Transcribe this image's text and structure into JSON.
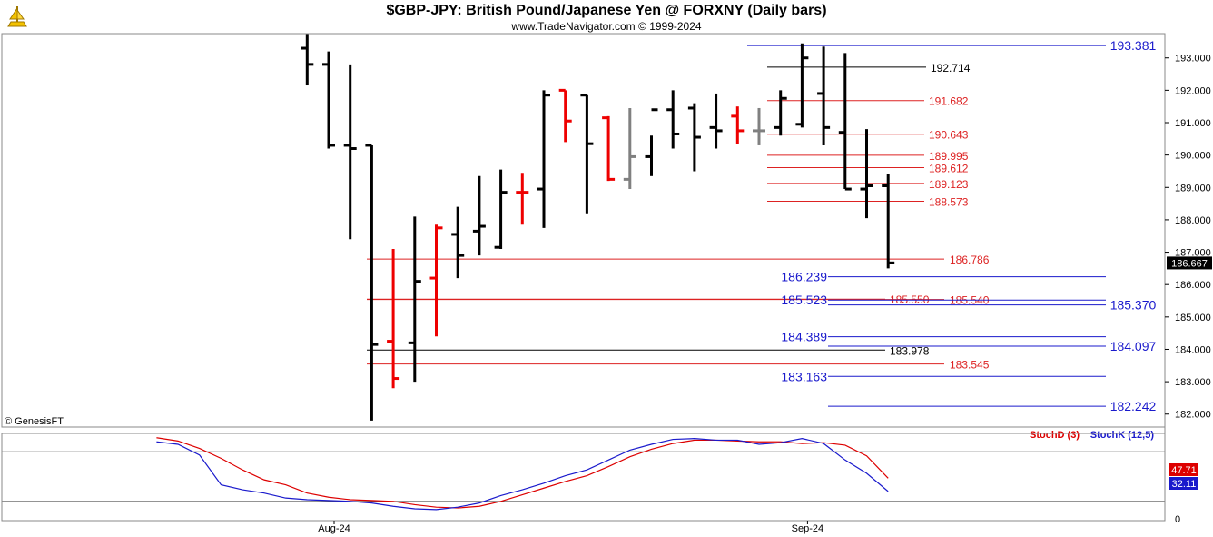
{
  "header": {
    "title": "$GBP-JPY:  British Pound/Japanese Yen @ FORXNY  (Daily bars)",
    "subtitle": "www.TradeNavigator.com © 1999-2024",
    "watermark": "© GenesisFT"
  },
  "colors": {
    "up": "#000000",
    "down": "#ee0000",
    "neutral": "#808080",
    "blue_level": "#1a1acc",
    "red_level": "#dd2222",
    "black_level": "#000000",
    "stochD": "#dd0000",
    "stochK": "#1a1acc",
    "last_price_box": "#000000",
    "stochD_box": "#dd0000",
    "stochK_box": "#1a1acc"
  },
  "chart_data": [
    {
      "type": "ohlc",
      "title": "$GBP-JPY:  British Pound/Japanese Yen @ FORXNY  (Daily bars)",
      "price_axis": {
        "min": 181.6,
        "max": 193.75,
        "ticks": [
          "193.000",
          "192.000",
          "191.000",
          "190.000",
          "189.000",
          "188.000",
          "187.000",
          "186.000",
          "185.000",
          "184.000",
          "183.000",
          "182.000"
        ]
      },
      "x_labels": [
        {
          "label": "Aug-24",
          "bar": 0
        },
        {
          "label": "Sep-24",
          "bar": 22
        }
      ],
      "last_price": "186.667",
      "bars": [
        {
          "x": -1,
          "o": 193.3,
          "h": 193.75,
          "l": 192.15,
          "c": 192.8,
          "col": "up"
        },
        {
          "x": 0,
          "o": 192.8,
          "h": 193.2,
          "l": 190.2,
          "c": 190.3,
          "col": "up"
        },
        {
          "x": 1,
          "o": 190.3,
          "h": 192.8,
          "l": 187.4,
          "c": 190.2,
          "col": "up"
        },
        {
          "x": 2,
          "o": 190.3,
          "h": 190.3,
          "l": 181.8,
          "c": 184.15,
          "col": "up"
        },
        {
          "x": 3,
          "o": 184.25,
          "h": 187.1,
          "l": 182.8,
          "c": 183.1,
          "col": "down"
        },
        {
          "x": 4,
          "o": 184.2,
          "h": 188.1,
          "l": 183.0,
          "c": 186.1,
          "col": "up"
        },
        {
          "x": 5,
          "o": 186.2,
          "h": 187.85,
          "l": 184.4,
          "c": 187.75,
          "col": "down"
        },
        {
          "x": 6,
          "o": 187.55,
          "h": 188.4,
          "l": 186.2,
          "c": 186.9,
          "col": "up"
        },
        {
          "x": 7,
          "o": 187.65,
          "h": 189.35,
          "l": 186.9,
          "c": 187.8,
          "col": "up"
        },
        {
          "x": 8,
          "o": 187.15,
          "h": 189.55,
          "l": 187.1,
          "c": 188.85,
          "col": "up"
        },
        {
          "x": 9,
          "o": 188.85,
          "h": 189.45,
          "l": 187.85,
          "c": 188.85,
          "col": "down"
        },
        {
          "x": 10,
          "o": 188.95,
          "h": 192.0,
          "l": 187.75,
          "c": 191.85,
          "col": "up"
        },
        {
          "x": 11,
          "o": 192.0,
          "h": 192.0,
          "l": 190.4,
          "c": 191.05,
          "col": "down"
        },
        {
          "x": 12,
          "o": 191.85,
          "h": 191.85,
          "l": 188.2,
          "c": 190.35,
          "col": "up"
        },
        {
          "x": 13,
          "o": 191.15,
          "h": 191.2,
          "l": 189.2,
          "c": 189.25,
          "col": "down"
        },
        {
          "x": 14,
          "o": 189.25,
          "h": 191.45,
          "l": 188.95,
          "c": 189.95,
          "col": "neutral"
        },
        {
          "x": 15,
          "o": 189.95,
          "h": 190.6,
          "l": 189.35,
          "c": 191.4,
          "col": "up"
        },
        {
          "x": 16,
          "o": 191.4,
          "h": 192.0,
          "l": 190.2,
          "c": 190.65,
          "col": "up"
        },
        {
          "x": 17,
          "o": 191.45,
          "h": 191.6,
          "l": 189.5,
          "c": 190.55,
          "col": "up"
        },
        {
          "x": 18,
          "o": 190.85,
          "h": 191.9,
          "l": 190.2,
          "c": 190.75,
          "col": "up"
        },
        {
          "x": 19,
          "o": 191.2,
          "h": 191.5,
          "l": 190.35,
          "c": 190.75,
          "col": "down"
        },
        {
          "x": 20,
          "o": 190.75,
          "h": 191.45,
          "l": 190.3,
          "c": 190.75,
          "col": "neutral"
        },
        {
          "x": 21,
          "o": 190.85,
          "h": 192.0,
          "l": 190.6,
          "c": 191.75,
          "col": "up"
        },
        {
          "x": 22,
          "o": 190.95,
          "h": 193.45,
          "l": 190.85,
          "c": 193.0,
          "col": "up"
        },
        {
          "x": 23,
          "o": 191.9,
          "h": 193.35,
          "l": 190.3,
          "c": 190.85,
          "col": "up"
        },
        {
          "x": 24,
          "o": 190.7,
          "h": 193.15,
          "l": 188.95,
          "c": 188.95,
          "col": "up"
        },
        {
          "x": 25,
          "o": 188.95,
          "h": 190.8,
          "l": 188.05,
          "c": 189.05,
          "col": "up"
        },
        {
          "x": 26,
          "o": 189.05,
          "h": 189.4,
          "l": 186.5,
          "c": 186.67,
          "col": "up"
        }
      ],
      "levels": [
        {
          "label": "193.381",
          "value": 193.381,
          "color": "blue_level",
          "x1": 823,
          "x2": 1218,
          "tx": 1248,
          "anchor": "middle",
          "size": 14
        },
        {
          "label": "192.714",
          "value": 192.714,
          "color": "black_level",
          "x1": 845,
          "x2": 1020,
          "tx": 1025,
          "anchor": "start",
          "size": 12
        },
        {
          "label": "191.682",
          "value": 191.682,
          "color": "red_level",
          "x1": 845,
          "x2": 1018,
          "tx": 1023,
          "anchor": "start",
          "size": 12
        },
        {
          "label": "190.643",
          "value": 190.643,
          "color": "red_level",
          "x1": 845,
          "x2": 1018,
          "tx": 1023,
          "anchor": "start",
          "size": 12
        },
        {
          "label": "189.995",
          "value": 189.995,
          "color": "red_level",
          "x1": 845,
          "x2": 1018,
          "tx": 1023,
          "anchor": "start",
          "size": 12
        },
        {
          "label": "189.612",
          "value": 189.612,
          "color": "red_level",
          "x1": 845,
          "x2": 1018,
          "tx": 1023,
          "anchor": "start",
          "size": 12
        },
        {
          "label": "189.123",
          "value": 189.123,
          "color": "red_level",
          "x1": 845,
          "x2": 1018,
          "tx": 1023,
          "anchor": "start",
          "size": 12
        },
        {
          "label": "188.573",
          "value": 188.573,
          "color": "red_level",
          "x1": 845,
          "x2": 1018,
          "tx": 1023,
          "anchor": "start",
          "size": 12
        },
        {
          "label": "186.786",
          "value": 186.786,
          "color": "red_level",
          "x1": 404,
          "x2": 1040,
          "tx": 1046,
          "anchor": "start",
          "size": 12
        },
        {
          "label": "186.239",
          "value": 186.239,
          "color": "blue_level",
          "x1": 912,
          "x2": 1218,
          "tx": 911,
          "anchor": "end",
          "size": 14
        },
        {
          "label": "185.550",
          "value": 185.55,
          "color": "red_level",
          "x1": 404,
          "x2": 975,
          "tx": 980,
          "anchor": "start",
          "size": 12
        },
        {
          "label": "185.540",
          "value": 185.54,
          "color": "red_level",
          "x1": 404,
          "x2": 1040,
          "tx": 1046,
          "anchor": "start",
          "size": 12
        },
        {
          "label": "185.523",
          "value": 185.523,
          "color": "blue_level",
          "x1": 912,
          "x2": 1218,
          "tx": 911,
          "anchor": "end",
          "size": 14
        },
        {
          "label": "185.370",
          "value": 185.37,
          "color": "blue_level",
          "x1": 912,
          "x2": 1218,
          "tx": 1248,
          "anchor": "middle",
          "size": 14
        },
        {
          "label": "184.389",
          "value": 184.389,
          "color": "blue_level",
          "x1": 912,
          "x2": 1218,
          "tx": 911,
          "anchor": "end",
          "size": 14
        },
        {
          "label": "184.097",
          "value": 184.097,
          "color": "blue_level",
          "x1": 912,
          "x2": 1218,
          "tx": 1248,
          "anchor": "middle",
          "size": 14
        },
        {
          "label": "183.978",
          "value": 183.978,
          "color": "black_level",
          "x1": 404,
          "x2": 975,
          "tx": 980,
          "anchor": "start",
          "size": 12
        },
        {
          "label": "183.545",
          "value": 183.545,
          "color": "red_level",
          "x1": 404,
          "x2": 1040,
          "tx": 1046,
          "anchor": "start",
          "size": 12
        },
        {
          "label": "183.163",
          "value": 183.163,
          "color": "blue_level",
          "x1": 912,
          "x2": 1218,
          "tx": 911,
          "anchor": "end",
          "size": 14
        },
        {
          "label": "182.242",
          "value": 182.242,
          "color": "blue_level",
          "x1": 912,
          "x2": 1218,
          "tx": 1248,
          "anchor": "middle",
          "size": 14
        }
      ]
    },
    {
      "type": "line",
      "legend": [
        {
          "name": "StochD (3)",
          "color": "stochD"
        },
        {
          "name": "StochK (12,5)",
          "color": "stochK"
        }
      ],
      "y_range": [
        0,
        100
      ],
      "y_ticks": [
        "0"
      ],
      "last_values": {
        "StochD (3)": "47.71",
        "StochK (12,5)": "32.11"
      },
      "series": [
        {
          "name": "StochD (3)",
          "color": "stochD",
          "points": [
            [
              -8,
              97
            ],
            [
              -7,
              93
            ],
            [
              -6,
              84
            ],
            [
              -5,
              72
            ],
            [
              -4,
              58
            ],
            [
              -3,
              46
            ],
            [
              -2,
              40
            ],
            [
              -1,
              30
            ],
            [
              0,
              25
            ],
            [
              1,
              22
            ],
            [
              2,
              21
            ],
            [
              3,
              20
            ],
            [
              4,
              16
            ],
            [
              5,
              13
            ],
            [
              6,
              12
            ],
            [
              7,
              14
            ],
            [
              8,
              20
            ],
            [
              9,
              28
            ],
            [
              10,
              36
            ],
            [
              11,
              44
            ],
            [
              12,
              51
            ],
            [
              13,
              62
            ],
            [
              14,
              74
            ],
            [
              15,
              83
            ],
            [
              16,
              90
            ],
            [
              17,
              94
            ],
            [
              18,
              94
            ],
            [
              19,
              93
            ],
            [
              20,
              92
            ],
            [
              21,
              92
            ],
            [
              22,
              90
            ],
            [
              23,
              91
            ],
            [
              24,
              88
            ],
            [
              25,
              75
            ],
            [
              26,
              48
            ]
          ]
        },
        {
          "name": "StochK (12,5)",
          "color": "stochK",
          "points": [
            [
              -8,
              92
            ],
            [
              -7,
              89
            ],
            [
              -6,
              76
            ],
            [
              -5,
              40
            ],
            [
              -4,
              34
            ],
            [
              -3,
              30
            ],
            [
              -2,
              24
            ],
            [
              -1,
              22
            ],
            [
              0,
              21
            ],
            [
              1,
              20
            ],
            [
              2,
              18
            ],
            [
              3,
              14
            ],
            [
              4,
              11
            ],
            [
              5,
              10
            ],
            [
              6,
              13
            ],
            [
              7,
              18
            ],
            [
              8,
              27
            ],
            [
              9,
              34
            ],
            [
              10,
              42
            ],
            [
              11,
              51
            ],
            [
              12,
              58
            ],
            [
              13,
              70
            ],
            [
              14,
              82
            ],
            [
              15,
              89
            ],
            [
              16,
              95
            ],
            [
              17,
              96
            ],
            [
              18,
              94
            ],
            [
              19,
              94
            ],
            [
              20,
              89
            ],
            [
              21,
              91
            ],
            [
              22,
              96
            ],
            [
              23,
              90
            ],
            [
              24,
              70
            ],
            [
              25,
              54
            ],
            [
              26,
              32
            ]
          ]
        }
      ]
    }
  ]
}
